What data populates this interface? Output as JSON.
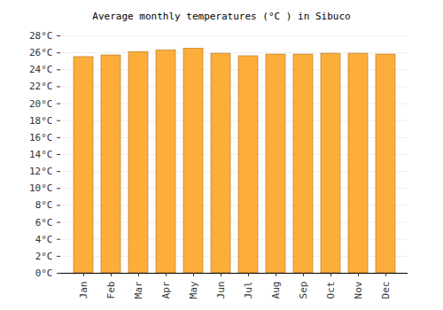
{
  "chart_data": {
    "type": "bar",
    "title": "Average monthly temperatures (°C ) in Sibuco",
    "categories": [
      "Jan",
      "Feb",
      "Mar",
      "Apr",
      "May",
      "Jun",
      "Jul",
      "Aug",
      "Sep",
      "Oct",
      "Nov",
      "Dec"
    ],
    "values": [
      25.5,
      25.7,
      26.1,
      26.3,
      26.5,
      25.9,
      25.6,
      25.8,
      25.8,
      25.9,
      25.9,
      25.8
    ],
    "color": "#fdae3a",
    "ylim": [
      0,
      28
    ],
    "yticks": [
      {
        "value": 0,
        "label": "0°C"
      },
      {
        "value": 2,
        "label": "2°C"
      },
      {
        "value": 4,
        "label": "4°C"
      },
      {
        "value": 6,
        "label": "6°C"
      },
      {
        "value": 8,
        "label": "8°C"
      },
      {
        "value": 10,
        "label": "10°C"
      },
      {
        "value": 12,
        "label": "12°C"
      },
      {
        "value": 14,
        "label": "14°C"
      },
      {
        "value": 16,
        "label": "16°C"
      },
      {
        "value": 18,
        "label": "18°C"
      },
      {
        "value": 20,
        "label": "20°C"
      },
      {
        "value": 22,
        "label": "22°C"
      },
      {
        "value": 24,
        "label": "24°C"
      },
      {
        "value": 26,
        "label": "26°C"
      },
      {
        "value": 28,
        "label": "28°C"
      }
    ],
    "grid": true
  }
}
